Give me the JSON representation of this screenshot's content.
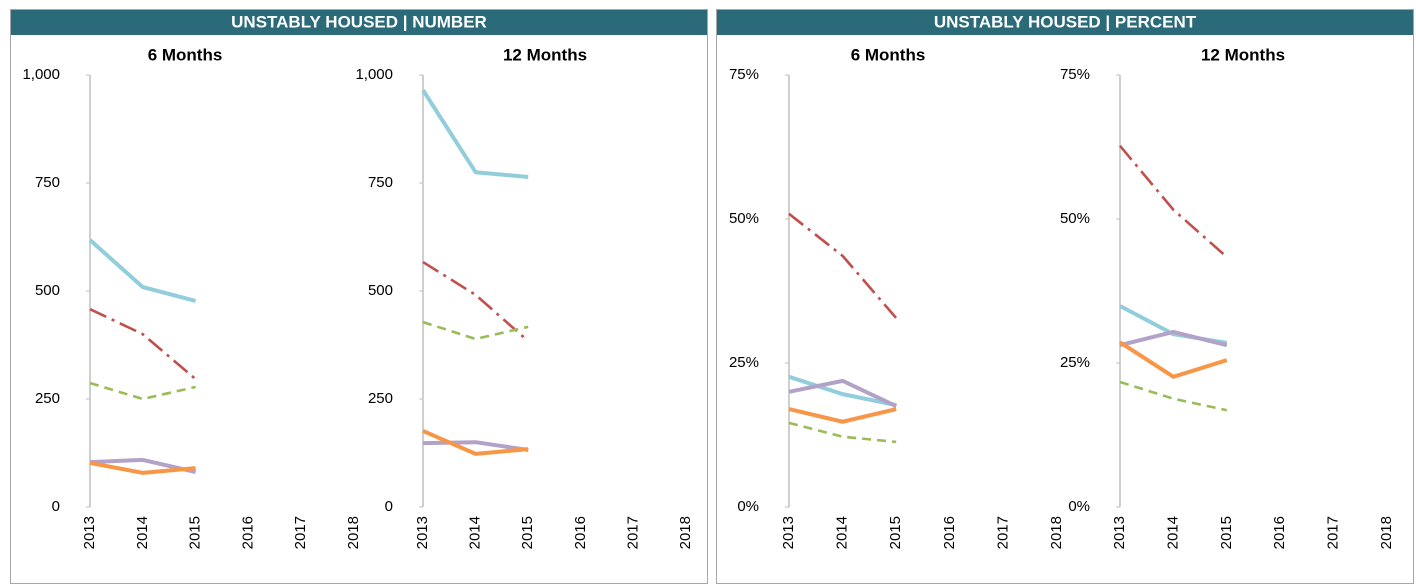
{
  "panels": [
    {
      "title": "UNSTABLY HOUSED | NUMBER"
    },
    {
      "title": "UNSTABLY HOUSED | PERCENT"
    }
  ],
  "chart_data": [
    {
      "type": "line",
      "title": "6 Months",
      "categories": [
        "2013",
        "2014",
        "2015",
        "2016",
        "2017",
        "2018"
      ],
      "ylim": [
        0,
        1000
      ],
      "yticks": [
        0,
        250,
        500,
        750,
        {
          "value": 1000,
          "label": "1,000"
        }
      ],
      "series": [
        {
          "color": "#92cddc",
          "style": "solid",
          "values": [
            618,
            509,
            477,
            null,
            null,
            null
          ]
        },
        {
          "color": "#c0504d",
          "style": "dashdot",
          "values": [
            458,
            400,
            296,
            null,
            null,
            null
          ]
        },
        {
          "color": "#9bbb59",
          "style": "dashed",
          "values": [
            287,
            250,
            278,
            null,
            null,
            null
          ]
        },
        {
          "color": "#b3a2c7",
          "style": "solid",
          "values": [
            104,
            109,
            81,
            null,
            null,
            null
          ]
        },
        {
          "color": "#f79646",
          "style": "solid",
          "values": [
            102,
            79,
            90,
            null,
            null,
            null
          ]
        }
      ]
    },
    {
      "type": "line",
      "title": "12 Months",
      "categories": [
        "2013",
        "2014",
        "2015",
        "2016",
        "2017",
        "2018"
      ],
      "ylim": [
        0,
        1000
      ],
      "yticks": [
        0,
        250,
        500,
        750,
        {
          "value": 1000,
          "label": "1,000"
        }
      ],
      "series": [
        {
          "color": "#92cddc",
          "style": "solid",
          "values": [
            965,
            775,
            764,
            null,
            null,
            null
          ]
        },
        {
          "color": "#c0504d",
          "style": "dashdot",
          "values": [
            567,
            491,
            384,
            null,
            null,
            null
          ]
        },
        {
          "color": "#9bbb59",
          "style": "dashed",
          "values": [
            428,
            389,
            417,
            null,
            null,
            null
          ]
        },
        {
          "color": "#b3a2c7",
          "style": "solid",
          "values": [
            148,
            150,
            132,
            null,
            null,
            null
          ]
        },
        {
          "color": "#f79646",
          "style": "solid",
          "values": [
            176,
            123,
            134,
            null,
            null,
            null
          ]
        }
      ]
    },
    {
      "type": "line",
      "title": "6 Months",
      "categories": [
        "2013",
        "2014",
        "2015",
        "2016",
        "2017",
        "2018"
      ],
      "ylim": [
        0,
        75
      ],
      "yticks": [
        {
          "value": 0,
          "label": "0%"
        },
        {
          "value": 25,
          "label": "25%"
        },
        {
          "value": 50,
          "label": "50%"
        },
        {
          "value": 75,
          "label": "75%"
        }
      ],
      "series": [
        {
          "color": "#c0504d",
          "style": "dashdot",
          "values": [
            50.9,
            43.6,
            32.8,
            null,
            null,
            null
          ]
        },
        {
          "color": "#92cddc",
          "style": "solid",
          "values": [
            22.6,
            19.6,
            17.7,
            null,
            null,
            null
          ]
        },
        {
          "color": "#b3a2c7",
          "style": "solid",
          "values": [
            20.0,
            21.9,
            17.5,
            null,
            null,
            null
          ]
        },
        {
          "color": "#f79646",
          "style": "solid",
          "values": [
            17.0,
            14.8,
            17.0,
            null,
            null,
            null
          ]
        },
        {
          "color": "#9bbb59",
          "style": "dashed",
          "values": [
            14.6,
            12.2,
            11.3,
            null,
            null,
            null
          ]
        }
      ]
    },
    {
      "type": "line",
      "title": "12 Months",
      "categories": [
        "2013",
        "2014",
        "2015",
        "2016",
        "2017",
        "2018"
      ],
      "ylim": [
        0,
        75
      ],
      "yticks": [
        {
          "value": 0,
          "label": "0%"
        },
        {
          "value": 25,
          "label": "25%"
        },
        {
          "value": 50,
          "label": "50%"
        },
        {
          "value": 75,
          "label": "75%"
        }
      ],
      "series": [
        {
          "color": "#c0504d",
          "style": "dashdot",
          "values": [
            62.7,
            51.6,
            43.4,
            null,
            null,
            null
          ]
        },
        {
          "color": "#92cddc",
          "style": "solid",
          "values": [
            34.9,
            30.0,
            28.5,
            null,
            null,
            null
          ]
        },
        {
          "color": "#b3a2c7",
          "style": "solid",
          "values": [
            28.1,
            30.4,
            28.1,
            null,
            null,
            null
          ]
        },
        {
          "color": "#f79646",
          "style": "solid",
          "values": [
            28.6,
            22.6,
            25.5,
            null,
            null,
            null
          ]
        },
        {
          "color": "#9bbb59",
          "style": "dashed",
          "values": [
            21.7,
            18.8,
            16.8,
            null,
            null,
            null
          ]
        }
      ]
    }
  ]
}
